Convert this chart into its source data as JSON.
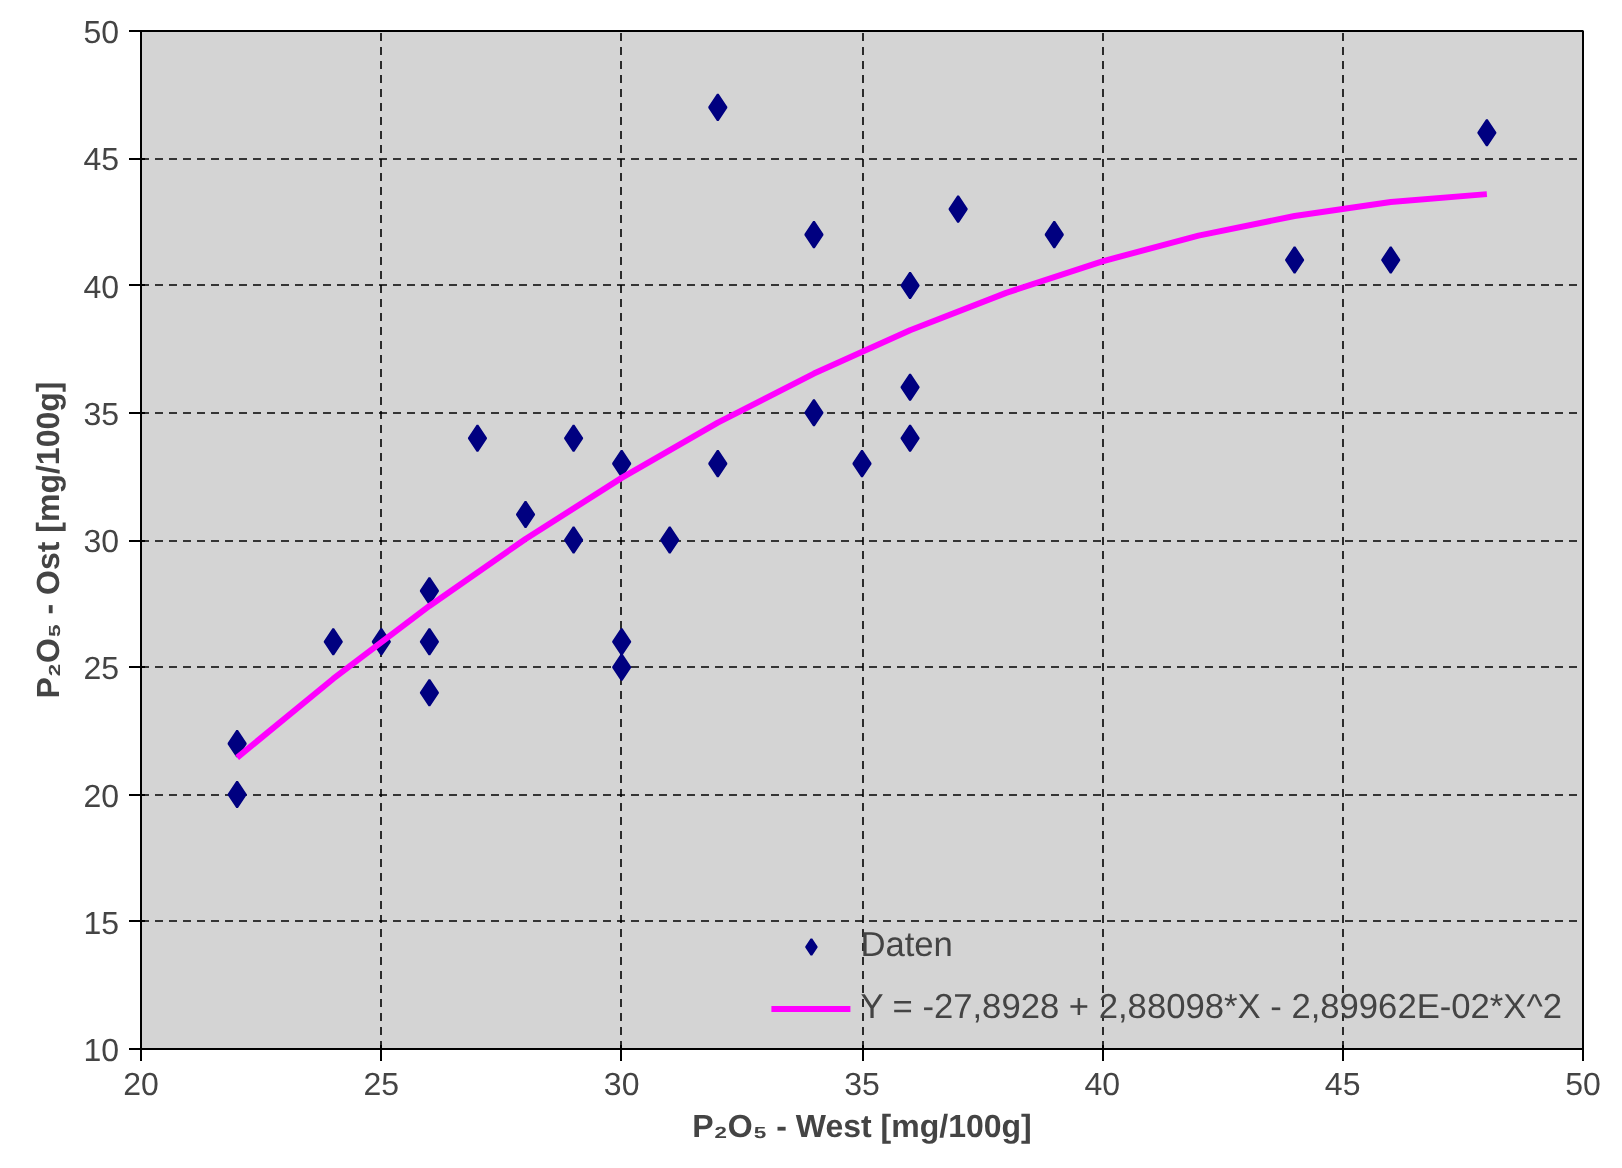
{
  "chart_data": {
    "type": "scatter",
    "xlabel": "P₂O₅ - West [mg/100g]",
    "ylabel": "P₂O₅ - Ost [mg/100g]",
    "xlim": [
      20,
      50
    ],
    "ylim": [
      10,
      50
    ],
    "xticks": [
      20,
      25,
      30,
      35,
      40,
      45,
      50
    ],
    "yticks": [
      10,
      15,
      20,
      25,
      30,
      35,
      40,
      45,
      50
    ],
    "grid": true,
    "legend": "bottom right",
    "series": [
      {
        "name": "Daten",
        "marker": "diamond",
        "color": "#000080",
        "x": [
          22,
          22,
          24,
          25,
          26,
          26,
          26,
          27,
          28,
          29,
          29,
          30,
          30,
          30,
          31,
          32,
          32,
          34,
          34,
          35,
          36,
          36,
          36,
          37,
          39,
          44,
          46,
          48
        ],
        "values": [
          22,
          20,
          26,
          26,
          28,
          26,
          24,
          34,
          31,
          34,
          30,
          33,
          26,
          25,
          30,
          47,
          33,
          42,
          35,
          33,
          40,
          36,
          34,
          43,
          42,
          41,
          41,
          46
        ]
      },
      {
        "name": "Y = -27,8928 + 2,88098*X - 2,89962E-02*X^2",
        "type": "line",
        "color": "#ff00ff",
        "x": [
          22,
          24,
          26,
          28,
          30,
          32,
          34,
          36,
          38,
          40,
          42,
          44,
          46,
          48
        ],
        "values": [
          21.45,
          24.55,
          27.41,
          30.04,
          32.44,
          34.61,
          36.54,
          38.24,
          39.71,
          40.95,
          41.96,
          42.73,
          43.28,
          43.59
        ]
      }
    ]
  }
}
